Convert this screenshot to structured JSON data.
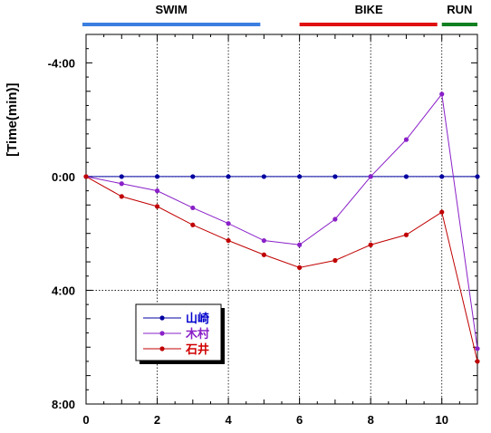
{
  "chart_data": {
    "type": "line",
    "ylabel": "[Time(min)]",
    "xlim": [
      0,
      11
    ],
    "ylim": [
      -5,
      8
    ],
    "y_inverted": true,
    "x_ticks": [
      0,
      2,
      4,
      6,
      8,
      10
    ],
    "x_tick_labels": [
      "0",
      "2",
      "4",
      "6",
      "8",
      "10"
    ],
    "y_ticks": [
      -4,
      0,
      4,
      8
    ],
    "y_tick_labels": [
      "-4:00",
      "0:00",
      "4:00",
      "8:00"
    ],
    "grid": "dotted at x = 2, 4, 6, 8, 10 and y = 0:00, 4:00",
    "legend_position": "lower-left",
    "phases": [
      {
        "label": "SWIM",
        "x_start": 0,
        "x_end": 5,
        "color": "#3a7fe0"
      },
      {
        "label": "BIKE",
        "x_start": 6,
        "x_end": 10,
        "color": "#e01010"
      },
      {
        "label": "RUN",
        "x_start": 10,
        "x_end": 11,
        "color": "#108020"
      }
    ],
    "x": [
      0,
      1,
      2,
      3,
      4,
      5,
      6,
      7,
      8,
      9,
      10,
      11
    ],
    "series": [
      {
        "name": "山崎",
        "color": "#0000a0",
        "label_color": "#0000cc",
        "values": [
          0,
          0,
          0,
          0,
          0,
          0,
          0,
          0,
          0,
          0,
          0,
          0
        ]
      },
      {
        "name": "木村",
        "color": "#8a20c8",
        "label_color": "#8a20c8",
        "values": [
          0,
          0.25,
          0.5,
          1.1,
          1.65,
          2.25,
          2.4,
          1.5,
          0,
          -1.3,
          -2.9,
          6.05
        ]
      },
      {
        "name": "石井",
        "color": "#c00000",
        "label_color": "#d00000",
        "values": [
          0,
          0.7,
          1.05,
          1.7,
          2.25,
          2.75,
          3.2,
          2.95,
          2.4,
          2.05,
          1.25,
          6.5
        ]
      }
    ]
  }
}
